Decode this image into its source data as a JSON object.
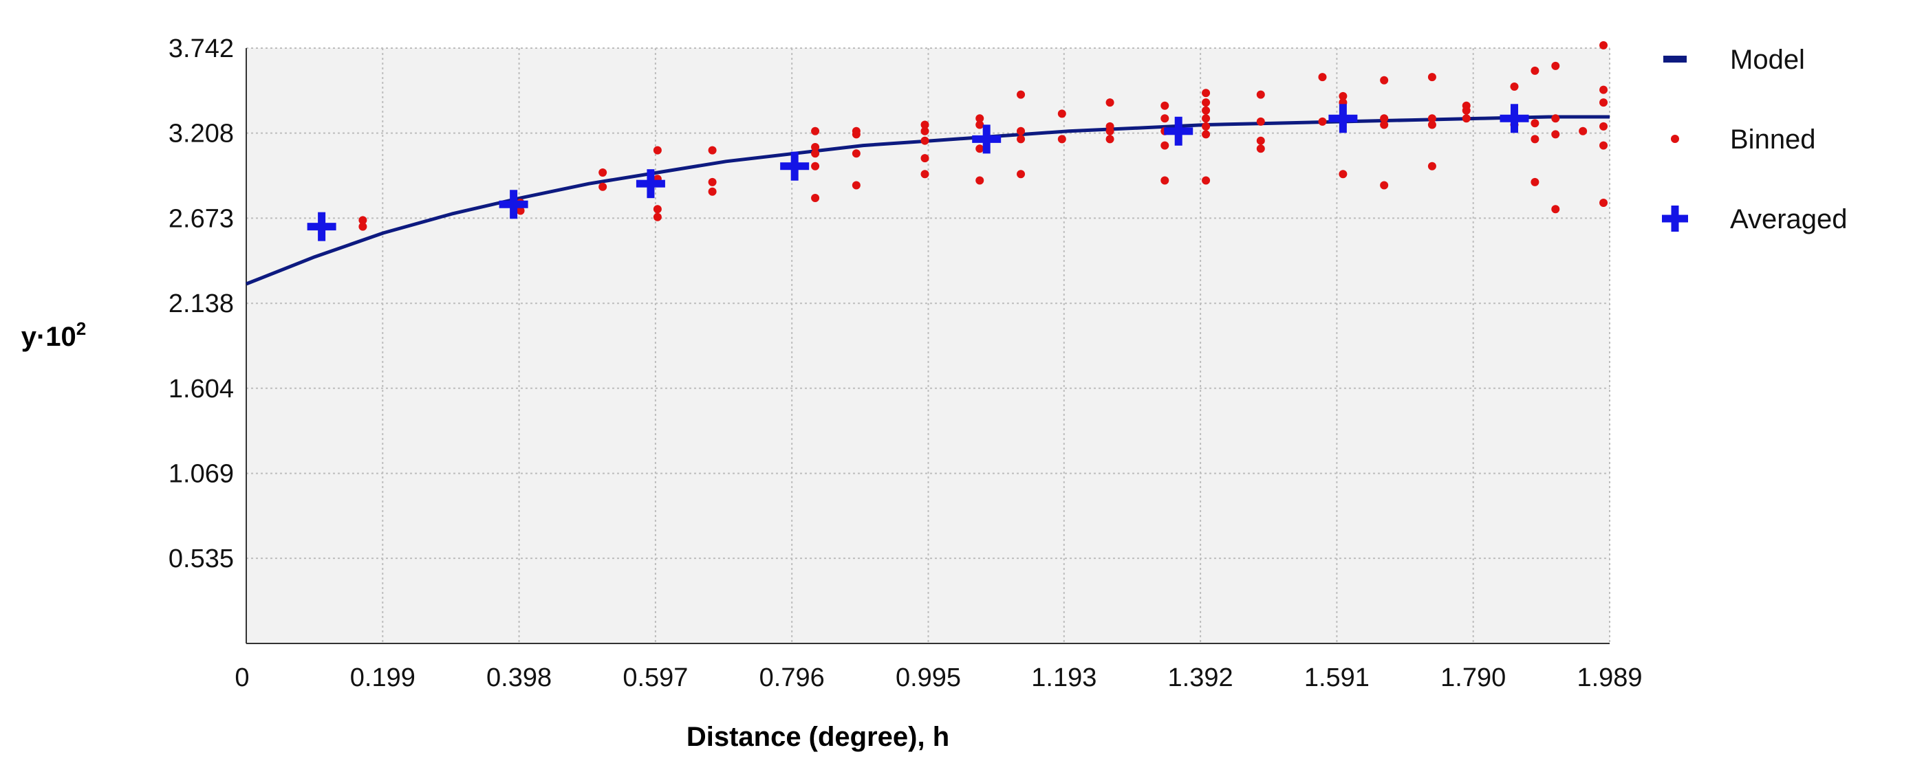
{
  "chart_data": {
    "type": "scatter",
    "xlabel": "Distance (degree), h",
    "ylabel": "y·10",
    "ylabel_exp": "2",
    "xlim": [
      0,
      1.989
    ],
    "ylim": [
      0,
      3.742
    ],
    "x_ticks": [
      "0",
      "0.199",
      "0.398",
      "0.597",
      "0.796",
      "0.995",
      "1.193",
      "1.392",
      "1.591",
      "1.790",
      "1.989"
    ],
    "y_ticks": [
      "0.535",
      "1.069",
      "1.604",
      "2.138",
      "2.673",
      "3.208",
      "3.742"
    ],
    "grid": true,
    "legend_placement": "right",
    "colors": {
      "model": "#0d1a80",
      "binned": "#e01010",
      "averaged": "#1414e6",
      "plot_bg": "#f2f2f2",
      "grid": "#bdbdbd"
    },
    "series": [
      {
        "name": "Model",
        "kind": "line",
        "x": [
          0,
          0.1,
          0.2,
          0.3,
          0.4,
          0.5,
          0.6,
          0.7,
          0.8,
          0.9,
          1.0,
          1.1,
          1.2,
          1.3,
          1.4,
          1.5,
          1.6,
          1.7,
          1.8,
          1.9,
          1.989
        ],
        "y": [
          2.26,
          2.43,
          2.58,
          2.7,
          2.8,
          2.89,
          2.96,
          3.03,
          3.08,
          3.13,
          3.16,
          3.19,
          3.22,
          3.24,
          3.26,
          3.27,
          3.28,
          3.29,
          3.3,
          3.31,
          3.31
        ]
      },
      {
        "name": "Binned",
        "kind": "dots",
        "points": [
          [
            0.17,
            2.62
          ],
          [
            0.17,
            2.66
          ],
          [
            0.4,
            2.72
          ],
          [
            0.4,
            2.77
          ],
          [
            0.52,
            2.87
          ],
          [
            0.52,
            2.96
          ],
          [
            0.6,
            2.73
          ],
          [
            0.6,
            2.68
          ],
          [
            0.6,
            2.92
          ],
          [
            0.6,
            3.1
          ],
          [
            0.68,
            2.84
          ],
          [
            0.68,
            2.9
          ],
          [
            0.68,
            3.1
          ],
          [
            0.83,
            2.8
          ],
          [
            0.83,
            3.0
          ],
          [
            0.83,
            3.08
          ],
          [
            0.83,
            3.12
          ],
          [
            0.83,
            3.22
          ],
          [
            0.89,
            2.88
          ],
          [
            0.89,
            3.08
          ],
          [
            0.89,
            3.2
          ],
          [
            0.89,
            3.22
          ],
          [
            0.99,
            2.95
          ],
          [
            0.99,
            3.05
          ],
          [
            0.99,
            3.16
          ],
          [
            0.99,
            3.22
          ],
          [
            0.99,
            3.26
          ],
          [
            1.07,
            2.91
          ],
          [
            1.07,
            3.11
          ],
          [
            1.07,
            3.26
          ],
          [
            1.07,
            3.3
          ],
          [
            1.13,
            2.95
          ],
          [
            1.13,
            3.17
          ],
          [
            1.13,
            3.22
          ],
          [
            1.13,
            3.45
          ],
          [
            1.19,
            3.17
          ],
          [
            1.19,
            3.33
          ],
          [
            1.26,
            3.17
          ],
          [
            1.26,
            3.22
          ],
          [
            1.26,
            3.25
          ],
          [
            1.26,
            3.4
          ],
          [
            1.34,
            2.91
          ],
          [
            1.34,
            3.13
          ],
          [
            1.34,
            3.22
          ],
          [
            1.34,
            3.3
          ],
          [
            1.34,
            3.38
          ],
          [
            1.4,
            2.91
          ],
          [
            1.4,
            3.2
          ],
          [
            1.4,
            3.25
          ],
          [
            1.4,
            3.3
          ],
          [
            1.4,
            3.35
          ],
          [
            1.4,
            3.4
          ],
          [
            1.4,
            3.46
          ],
          [
            1.48,
            3.11
          ],
          [
            1.48,
            3.16
          ],
          [
            1.48,
            3.28
          ],
          [
            1.48,
            3.45
          ],
          [
            1.57,
            3.28
          ],
          [
            1.57,
            3.56
          ],
          [
            1.6,
            2.95
          ],
          [
            1.6,
            3.3
          ],
          [
            1.6,
            3.4
          ],
          [
            1.6,
            3.44
          ],
          [
            1.66,
            2.88
          ],
          [
            1.66,
            3.26
          ],
          [
            1.66,
            3.3
          ],
          [
            1.66,
            3.54
          ],
          [
            1.73,
            3.0
          ],
          [
            1.73,
            3.26
          ],
          [
            1.73,
            3.3
          ],
          [
            1.73,
            3.56
          ],
          [
            1.78,
            3.3
          ],
          [
            1.78,
            3.35
          ],
          [
            1.78,
            3.38
          ],
          [
            1.85,
            3.26
          ],
          [
            1.85,
            3.5
          ],
          [
            1.88,
            2.9
          ],
          [
            1.88,
            3.17
          ],
          [
            1.88,
            3.27
          ],
          [
            1.88,
            3.6
          ],
          [
            1.91,
            2.73
          ],
          [
            1.91,
            3.2
          ],
          [
            1.91,
            3.3
          ],
          [
            1.91,
            3.63
          ],
          [
            1.95,
            3.22
          ],
          [
            1.98,
            2.77
          ],
          [
            1.98,
            3.13
          ],
          [
            1.98,
            3.25
          ],
          [
            1.98,
            3.4
          ],
          [
            1.98,
            3.48
          ],
          [
            1.98,
            3.76
          ]
        ]
      },
      {
        "name": "Averaged",
        "kind": "crosses",
        "points": [
          [
            0.11,
            2.62
          ],
          [
            0.39,
            2.76
          ],
          [
            0.59,
            2.89
          ],
          [
            0.8,
            3.0
          ],
          [
            1.08,
            3.17
          ],
          [
            1.36,
            3.22
          ],
          [
            1.6,
            3.3
          ],
          [
            1.85,
            3.3
          ]
        ]
      }
    ]
  }
}
